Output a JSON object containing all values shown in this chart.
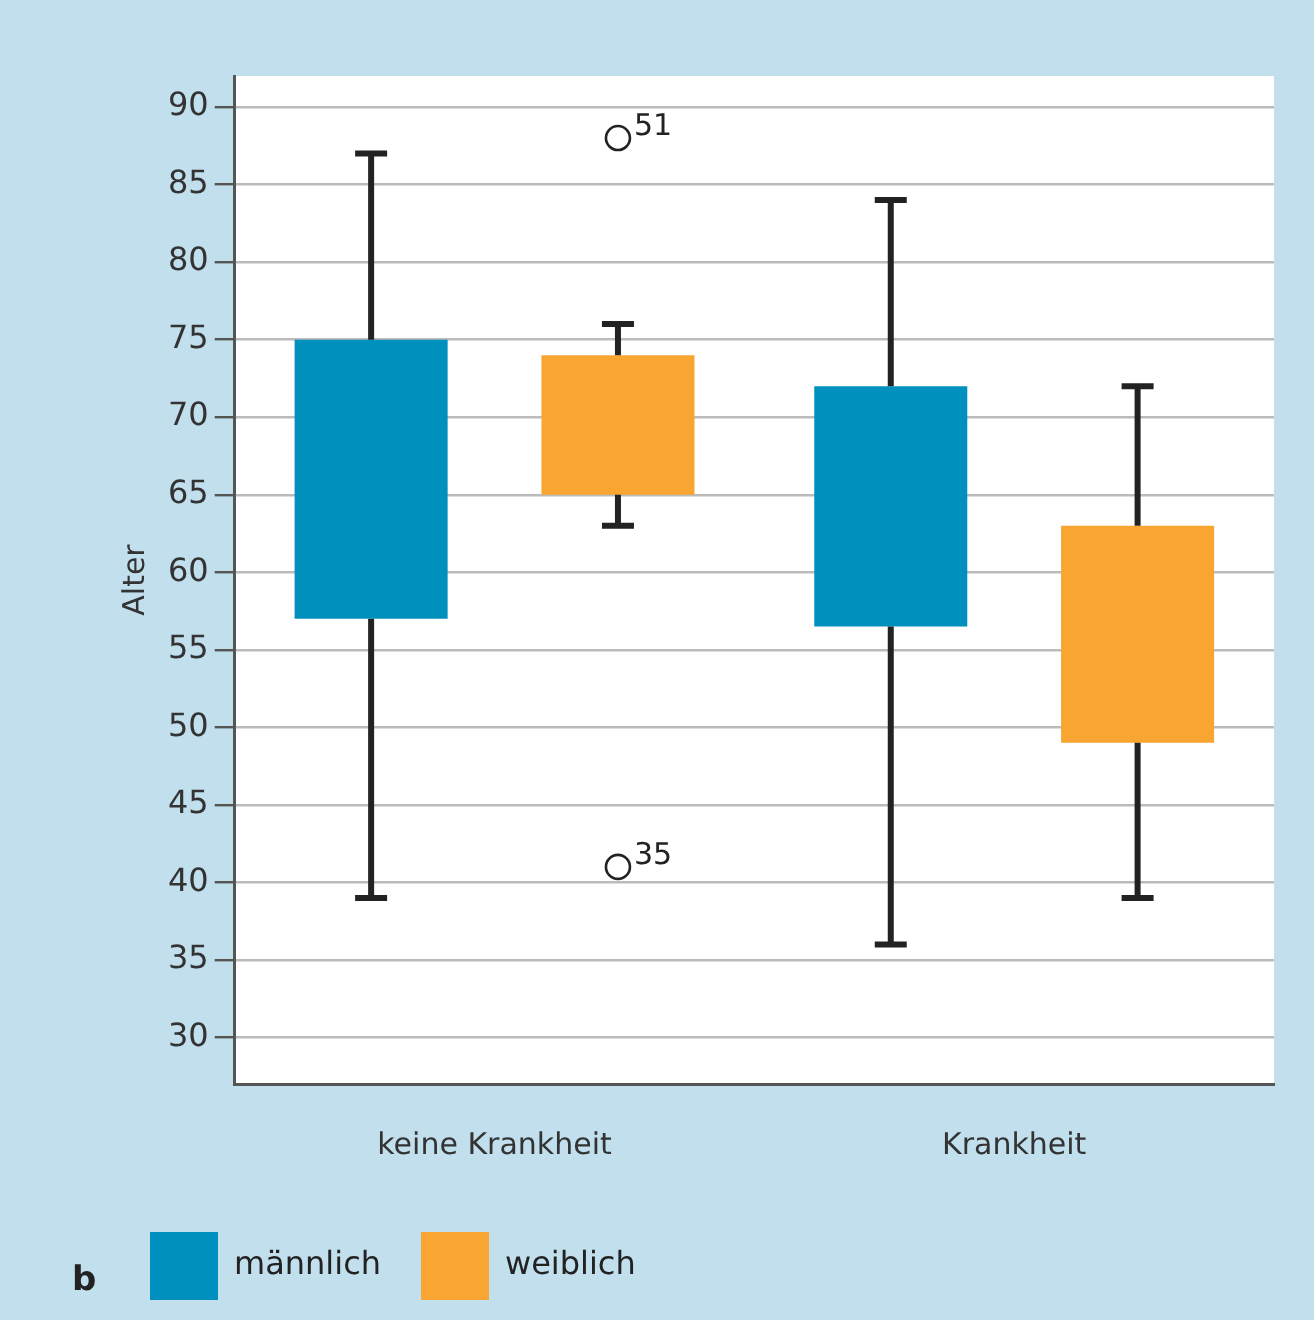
{
  "chart_data": {
    "type": "box",
    "ylabel": "Alter",
    "categories": [
      "keine Krankheit",
      "Krankheit"
    ],
    "series": [
      {
        "name": "männlich",
        "color": "#0090be",
        "boxes": [
          {
            "low": 39,
            "q1": 57,
            "q3": 75,
            "high": 87
          },
          {
            "low": 36,
            "q1": 56.5,
            "q3": 72,
            "high": 84
          }
        ]
      },
      {
        "name": "weiblich",
        "color": "#f8a532",
        "boxes": [
          {
            "low": 63,
            "q1": 65,
            "q3": 74,
            "high": 76,
            "outliers": [
              88,
              41
            ]
          },
          {
            "low": 39,
            "q1": 49,
            "q3": 63,
            "high": 72
          }
        ]
      }
    ],
    "ylim": [
      27,
      92
    ],
    "yticks": [
      30,
      35,
      40,
      45,
      50,
      55,
      60,
      65,
      70,
      75,
      80,
      85,
      90
    ],
    "grid": "y",
    "legend": "bottom",
    "annotations": [
      "51",
      "35",
      "b"
    ]
  }
}
